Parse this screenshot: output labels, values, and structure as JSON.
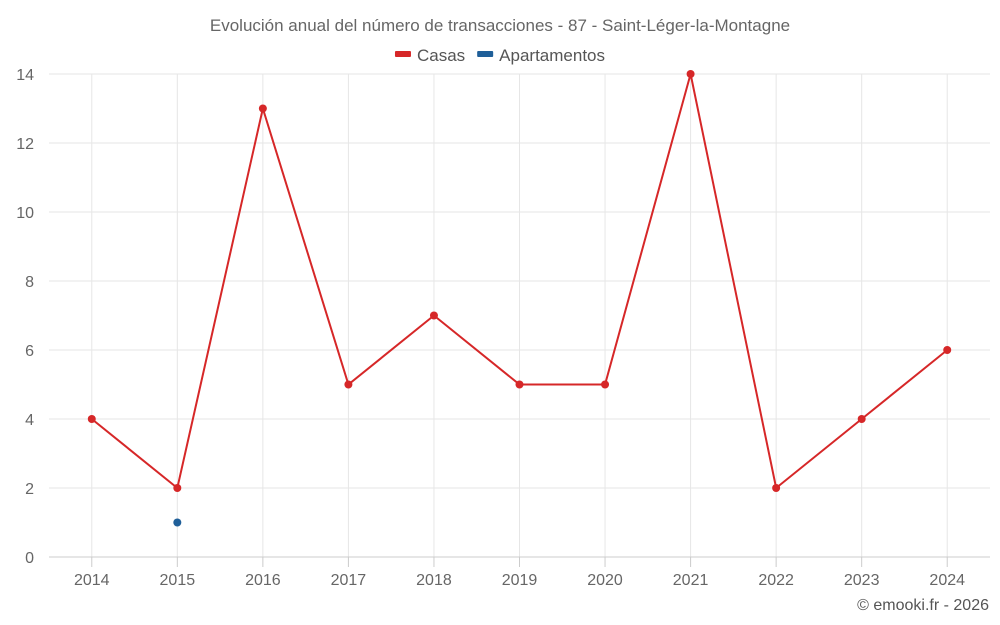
{
  "chart_data": {
    "type": "line",
    "title": "Evolución anual del número de transacciones - 87 - Saint-Léger-la-Montagne",
    "categories": [
      "2014",
      "2015",
      "2016",
      "2017",
      "2018",
      "2019",
      "2020",
      "2021",
      "2022",
      "2023",
      "2024"
    ],
    "series": [
      {
        "name": "Casas",
        "color": "#d62728",
        "values": [
          4,
          2,
          13,
          5,
          7,
          5,
          5,
          14,
          2,
          4,
          6
        ]
      },
      {
        "name": "Apartamentos",
        "color": "#1f5f99",
        "values": [
          null,
          1,
          null,
          null,
          null,
          null,
          null,
          null,
          null,
          null,
          null
        ]
      }
    ],
    "yticks": [
      "0",
      "2",
      "4",
      "6",
      "8",
      "10",
      "12",
      "14"
    ],
    "ylim": [
      0,
      14
    ],
    "grid": true,
    "legend_position": "top-center"
  },
  "credit": "© emooki.fr - 2026"
}
